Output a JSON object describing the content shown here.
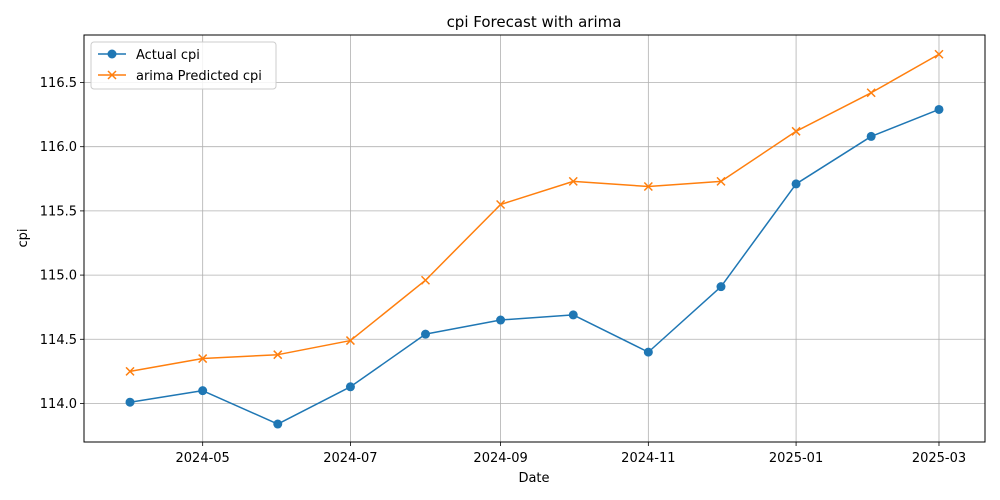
{
  "chart_data": {
    "type": "line",
    "title": "cpi Forecast with arima",
    "xlabel": "Date",
    "ylabel": "cpi",
    "x": [
      "2024-04-01",
      "2024-05-01",
      "2024-06-01",
      "2024-07-01",
      "2024-08-01",
      "2024-09-01",
      "2024-10-01",
      "2024-11-01",
      "2024-12-01",
      "2025-01-01",
      "2025-02-01",
      "2025-03-01"
    ],
    "xlim": [
      "2024-03-13",
      "2025-03-20"
    ],
    "ylim": [
      113.7,
      116.87
    ],
    "x_ticks": [
      {
        "value": "2024-05-01",
        "label": "2024-05"
      },
      {
        "value": "2024-07-01",
        "label": "2024-07"
      },
      {
        "value": "2024-09-01",
        "label": "2024-09"
      },
      {
        "value": "2024-11-01",
        "label": "2024-11"
      },
      {
        "value": "2025-01-01",
        "label": "2025-01"
      },
      {
        "value": "2025-03-01",
        "label": "2025-03"
      }
    ],
    "y_ticks": [
      {
        "value": 114.0,
        "label": "114.0"
      },
      {
        "value": 114.5,
        "label": "114.5"
      },
      {
        "value": 115.0,
        "label": "115.0"
      },
      {
        "value": 115.5,
        "label": "115.5"
      },
      {
        "value": 116.0,
        "label": "116.0"
      },
      {
        "value": 116.5,
        "label": "116.5"
      }
    ],
    "grid": true,
    "legend_position": "top-left",
    "series": [
      {
        "name": "Actual cpi",
        "color": "#1f77b4",
        "marker": "circle",
        "values": [
          114.01,
          114.1,
          113.84,
          114.13,
          114.54,
          114.65,
          114.69,
          114.4,
          114.91,
          115.71,
          116.08,
          116.29
        ]
      },
      {
        "name": "arima Predicted cpi",
        "color": "#ff7f0e",
        "marker": "x",
        "values": [
          114.25,
          114.35,
          114.38,
          114.49,
          114.96,
          115.55,
          115.73,
          115.69,
          115.73,
          116.12,
          116.42,
          116.72
        ]
      }
    ]
  }
}
